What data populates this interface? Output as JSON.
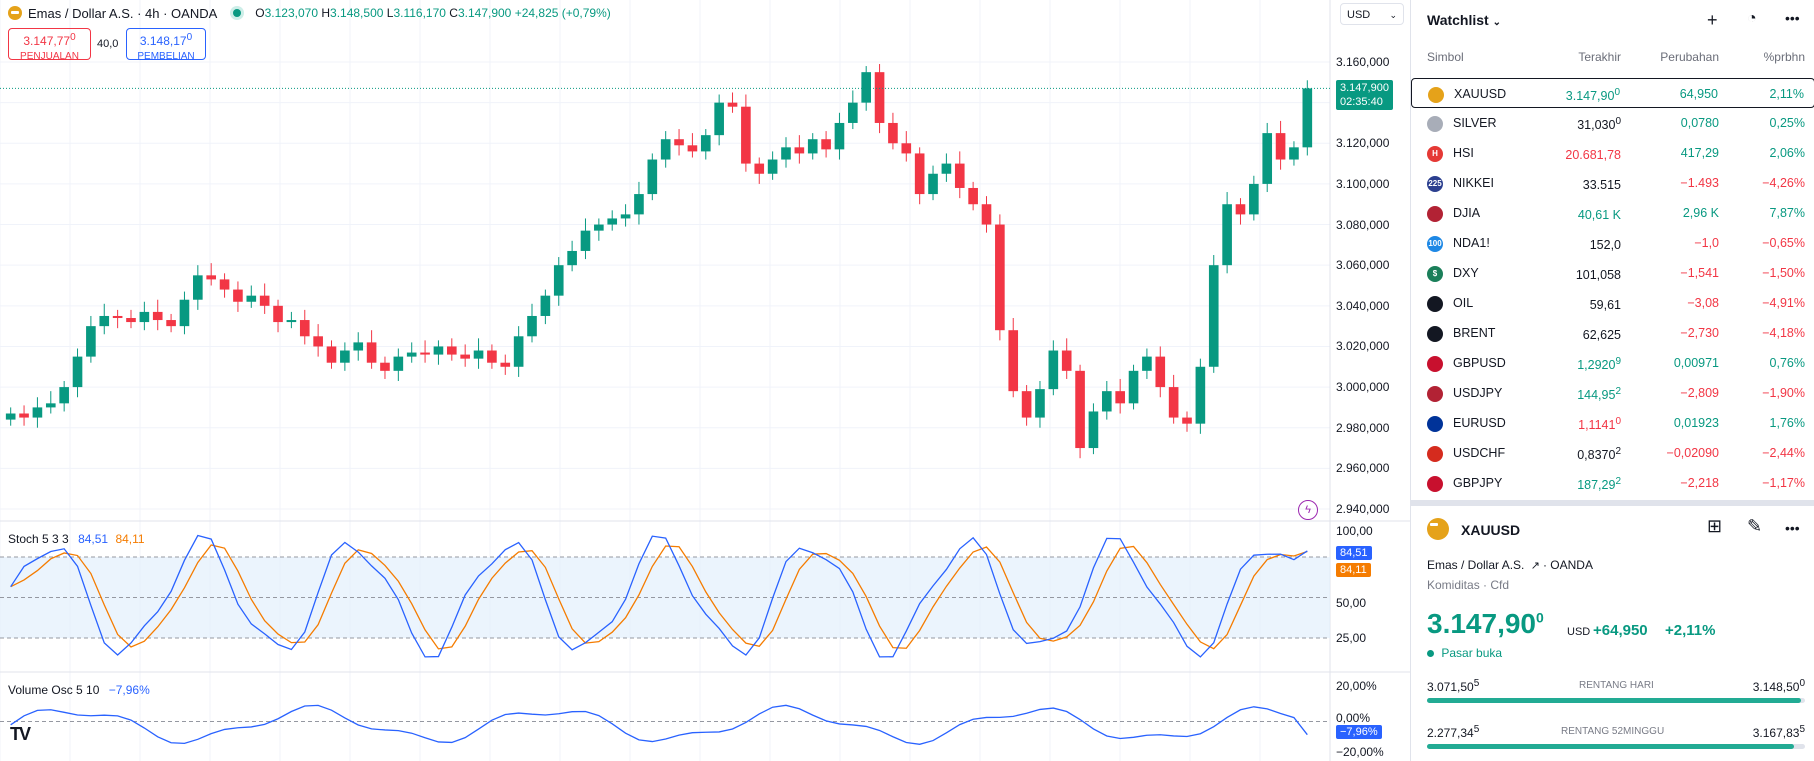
{
  "legend": {
    "symbol": "Emas / Dollar A.S. · 4h · OANDA",
    "o_label": "O",
    "o": "3.123,070",
    "h_label": "H",
    "h": "3.148,500",
    "l_label": "L",
    "l": "3.116,170",
    "c_label": "C",
    "c": "3.147,900",
    "change": "+24,825 (+0,79%)"
  },
  "trade": {
    "sell_price": "3.147,77",
    "sell_sup": "0",
    "sell_label": "PENJUALAN",
    "spread": "40,0",
    "buy_price": "3.148,17",
    "buy_sup": "0",
    "buy_label": "PEMBELIAN"
  },
  "currency": "USD",
  "price_axis": [
    "3.160,000",
    "3.140,000",
    "3.120,000",
    "3.100,000",
    "3.080,000",
    "3.060,000",
    "3.040,000",
    "3.020,000",
    "3.000,000",
    "2.980,000",
    "2.960,000",
    "2.940,000"
  ],
  "last_price_tag": "3.147,900",
  "countdown": "02:35:40",
  "stoch": {
    "label": "Stoch 5 3 3",
    "k": "84,51",
    "d": "84,11",
    "axis": [
      "100,00",
      "50,00",
      "25,00"
    ]
  },
  "volosc": {
    "label": "Volume Osc 5 10",
    "value": "−7,96%",
    "axis": [
      "20,00%",
      "0,00%",
      "−20,00%"
    ],
    "tag": "−7,96%"
  },
  "colors": {
    "up": "#089981",
    "down": "#f23645",
    "k_line": "#2962ff",
    "d_line": "#f57c00"
  },
  "chart_data": {
    "type": "candlestick",
    "timeframe": "4h",
    "ylim": [
      2940,
      3165
    ],
    "candles_close": [
      2987,
      2985,
      2990,
      2992,
      3000,
      3015,
      3030,
      3035,
      3034,
      3032,
      3037,
      3033,
      3030,
      3043,
      3055,
      3053,
      3048,
      3042,
      3045,
      3040,
      3032,
      3033,
      3025,
      3020,
      3012,
      3018,
      3022,
      3012,
      3008,
      3015,
      3017,
      3016,
      3020,
      3016,
      3014,
      3018,
      3012,
      3010,
      3025,
      3035,
      3045,
      3060,
      3067,
      3077,
      3080,
      3083,
      3085,
      3095,
      3112,
      3122,
      3119,
      3116,
      3124,
      3140,
      3138,
      3110,
      3105,
      3112,
      3118,
      3115,
      3122,
      3117,
      3130,
      3140,
      3155,
      3130,
      3120,
      3115,
      3095,
      3105,
      3110,
      3098,
      3090,
      3080,
      3028,
      2998,
      2985,
      2999,
      3018,
      3008,
      2970,
      2988,
      2998,
      2992,
      3008,
      3015,
      3000,
      2985,
      2982,
      3010,
      3060,
      3090,
      3085,
      3100,
      3125,
      3112,
      3118,
      3147
    ],
    "stoch_k_last": 84.51,
    "stoch_d_last": 84.11,
    "volume_osc_last": -7.96
  },
  "watchlist": {
    "title": "Watchlist",
    "columns": [
      "Simbol",
      "Terakhir",
      "Perubahan",
      "%prbhn"
    ],
    "rows": [
      {
        "icon": "gold-coin-icon",
        "color": "#e5a21a",
        "abbr": "",
        "sym": "XAUUSD",
        "last": "3.147,90",
        "sup": "0",
        "chg": "64,950",
        "pct": "2,11%",
        "dir": "pos",
        "lastdir": "pos"
      },
      {
        "icon": "silver-coin-icon",
        "color": "#a8adb8",
        "abbr": "",
        "sym": "SILVER",
        "last": "31,030",
        "sup": "0",
        "chg": "0,0780",
        "pct": "0,25%",
        "dir": "pos",
        "lastdir": "neu"
      },
      {
        "icon": "hsi-icon",
        "color": "#e53935",
        "abbr": "H",
        "sym": "HSI",
        "last": "20.681,78",
        "sup": "",
        "chg": "417,29",
        "pct": "2,06%",
        "dir": "pos",
        "lastdir": "neg"
      },
      {
        "icon": "nikkei-icon",
        "color": "#2b3f8f",
        "abbr": "225",
        "sym": "NIKKEI",
        "last": "33.515",
        "sup": "",
        "chg": "−1.493",
        "pct": "−4,26%",
        "dir": "neg",
        "lastdir": "neu"
      },
      {
        "icon": "us-flag-icon",
        "color": "#b22234",
        "abbr": "",
        "sym": "DJIA",
        "last": "40,61 K",
        "sup": "",
        "chg": "2,96 K",
        "pct": "7,87%",
        "dir": "pos",
        "lastdir": "pos"
      },
      {
        "icon": "nasdaq-icon",
        "color": "#1e88e5",
        "abbr": "100",
        "sym": "NDA1!",
        "last": "152,0",
        "sup": "",
        "chg": "−1,0",
        "pct": "−0,65%",
        "dir": "neg",
        "lastdir": "neu"
      },
      {
        "icon": "dollar-index-icon",
        "color": "#1b7f5a",
        "abbr": "$",
        "sym": "DXY",
        "last": "101,058",
        "sup": "",
        "chg": "−1,541",
        "pct": "−1,50%",
        "dir": "neg",
        "lastdir": "neu"
      },
      {
        "icon": "oil-drop-icon",
        "color": "#131722",
        "abbr": "",
        "sym": "OIL",
        "last": "59,61",
        "sup": "",
        "chg": "−3,08",
        "pct": "−4,91%",
        "dir": "neg",
        "lastdir": "neu"
      },
      {
        "icon": "oil-drop-icon",
        "color": "#131722",
        "abbr": "",
        "sym": "BRENT",
        "last": "62,625",
        "sup": "",
        "chg": "−2,730",
        "pct": "−4,18%",
        "dir": "neg",
        "lastdir": "neu"
      },
      {
        "icon": "gbp-usd-flag-icon",
        "color": "#c8102e",
        "abbr": "",
        "sym": "GBPUSD",
        "last": "1,2920",
        "sup": "9",
        "chg": "0,00971",
        "pct": "0,76%",
        "dir": "pos",
        "lastdir": "pos"
      },
      {
        "icon": "usd-jpy-flag-icon",
        "color": "#b22234",
        "abbr": "",
        "sym": "USDJPY",
        "last": "144,95",
        "sup": "2",
        "chg": "−2,809",
        "pct": "−1,90%",
        "dir": "neg",
        "lastdir": "pos"
      },
      {
        "icon": "eur-usd-flag-icon",
        "color": "#003399",
        "abbr": "",
        "sym": "EURUSD",
        "last": "1,1141",
        "sup": "0",
        "chg": "0,01923",
        "pct": "1,76%",
        "dir": "pos",
        "lastdir": "neg"
      },
      {
        "icon": "usd-chf-flag-icon",
        "color": "#d52b1e",
        "abbr": "",
        "sym": "USDCHF",
        "last": "0,8370",
        "sup": "2",
        "chg": "−0,02090",
        "pct": "−2,44%",
        "dir": "neg",
        "lastdir": "neu"
      },
      {
        "icon": "gbp-jpy-flag-icon",
        "color": "#c8102e",
        "abbr": "",
        "sym": "GBPJPY",
        "last": "187,29",
        "sup": "2",
        "chg": "−2,218",
        "pct": "−1,17%",
        "dir": "neg",
        "lastdir": "pos"
      }
    ]
  },
  "details": {
    "symbol": "XAUUSD",
    "name": "Emas / Dollar A.S.",
    "exchange": "OANDA",
    "category": "Komiditas · Cfd",
    "price": "3.147,90",
    "price_sup": "0",
    "currency": "USD",
    "change": "+64,950",
    "change_pct": "+2,11%",
    "market_status": "Pasar buka",
    "day_low": "3.071,50",
    "day_low_sup": "5",
    "day_label": "RENTANG HARI",
    "day_high": "3.148,50",
    "day_high_sup": "0",
    "day_progress": 0.99,
    "wk_low": "2.277,34",
    "wk_low_sup": "5",
    "wk_label": "RENTANG 52MINGGU",
    "wk_high": "3.167,83",
    "wk_high_sup": "5",
    "wk_progress": 0.97
  }
}
